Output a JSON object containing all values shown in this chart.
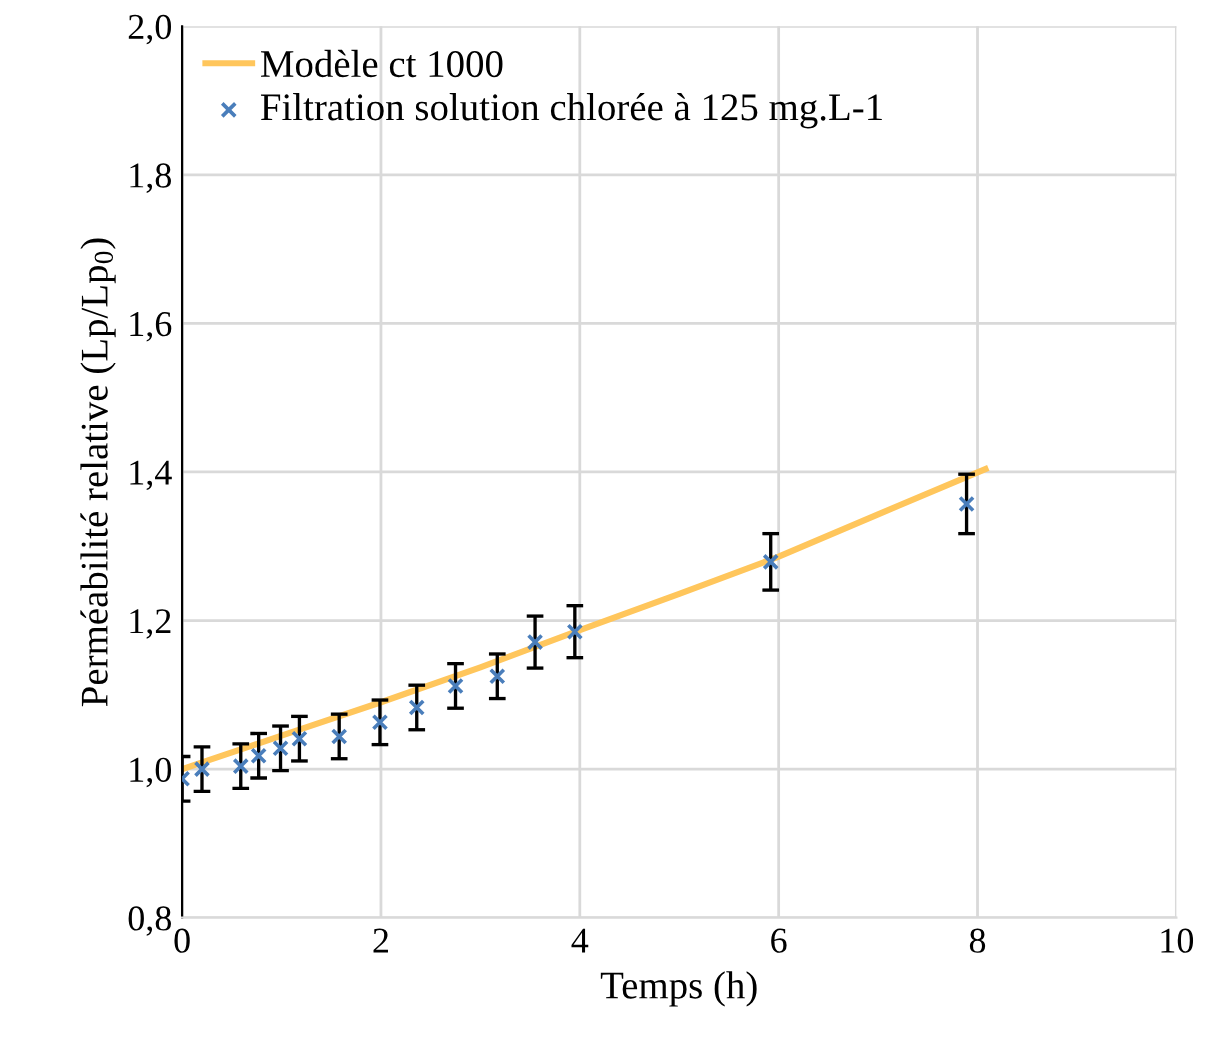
{
  "chart_data": {
    "type": "scatter",
    "xlabel": "Temps (h)",
    "ylabel": "Perméabilité relative (Lp/Lp$_{0}$)",
    "xlim": [
      0,
      10
    ],
    "xticks": [
      0,
      2,
      4,
      6,
      8,
      10
    ],
    "ylim": [
      0.8,
      2.0
    ],
    "yticks": [
      {
        "value": 0.8,
        "label": "0,8"
      },
      {
        "value": 1.0,
        "label": "1,0"
      },
      {
        "value": 1.2,
        "label": "1,2"
      },
      {
        "value": 1.4,
        "label": "1,4"
      },
      {
        "value": 1.6,
        "label": "1,6"
      },
      {
        "value": 1.8,
        "label": "1,8"
      },
      {
        "value": 2.0,
        "label": "2,0"
      }
    ],
    "grid": true,
    "legend": "top left",
    "series": [
      {
        "name": "Modèle ct 1000",
        "type": "line",
        "color": "#ffc65c",
        "marker": "none",
        "line_style": "solid",
        "x": [
          0,
          1,
          2,
          3,
          4,
          5,
          6,
          7,
          8.08
        ],
        "values": [
          1.0,
          1.045,
          1.09,
          1.137,
          1.187,
          1.236,
          1.286,
          1.343,
          1.404
        ]
      },
      {
        "name": "Filtration solution chlorée à 125 mg.L-1",
        "color": "#4a7ebb",
        "marker": "cross",
        "x": [
          0,
          0.2,
          0.59,
          0.77,
          0.99,
          1.18,
          1.58,
          1.99,
          2.36,
          2.75,
          3.17,
          3.55,
          3.95,
          5.92,
          7.89
        ],
        "values": [
          0.987,
          1.0,
          1.004,
          1.018,
          1.028,
          1.041,
          1.044,
          1.063,
          1.083,
          1.112,
          1.125,
          1.171,
          1.185,
          1.279,
          1.357
        ],
        "errors": [
          0.03,
          0.03,
          0.03,
          0.03,
          0.03,
          0.03,
          0.03,
          0.03,
          0.03,
          0.03,
          0.03,
          0.035,
          0.035,
          0.038,
          0.04
        ]
      }
    ]
  }
}
